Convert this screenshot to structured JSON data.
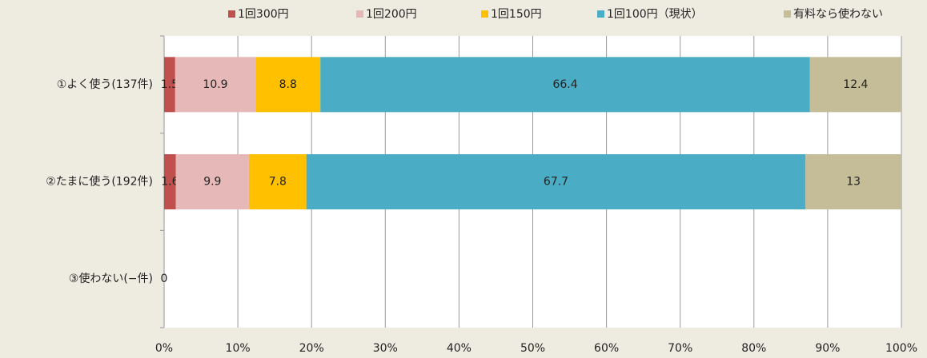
{
  "chart_data": {
    "type": "stacked_barh",
    "categories": [
      "①よく使う(137件)",
      "②たまに使う(192件)",
      "③使わない(−件)"
    ],
    "series": [
      {
        "name": "1回300円",
        "color": "#c0504d",
        "values": [
          1.5,
          1.6,
          0
        ]
      },
      {
        "name": "1回200円",
        "color": "#e6b9b8",
        "values": [
          10.9,
          9.9,
          null
        ]
      },
      {
        "name": "1回150円",
        "color": "#ffc000",
        "values": [
          8.8,
          7.8,
          null
        ]
      },
      {
        "name": "1回100円（現状）",
        "color": "#4bacc6",
        "values": [
          66.4,
          67.7,
          null
        ]
      },
      {
        "name": "有料なら使わない",
        "color": "#c4bd97",
        "values": [
          12.4,
          13,
          null
        ]
      }
    ],
    "xlim": [
      0,
      100
    ],
    "xticks": [
      {
        "value": 0,
        "label": "0%"
      },
      {
        "value": 10,
        "label": "10%"
      },
      {
        "value": 20,
        "label": "20%"
      },
      {
        "value": 30,
        "label": "30%"
      },
      {
        "value": 40,
        "label": "40%"
      },
      {
        "value": 50,
        "label": "50%"
      },
      {
        "value": 60,
        "label": "60%"
      },
      {
        "value": 70,
        "label": "70%"
      },
      {
        "value": 80,
        "label": "80%"
      },
      {
        "value": 90,
        "label": "90%"
      },
      {
        "value": 100,
        "label": "100%"
      }
    ],
    "grid": true,
    "legend": "top"
  }
}
